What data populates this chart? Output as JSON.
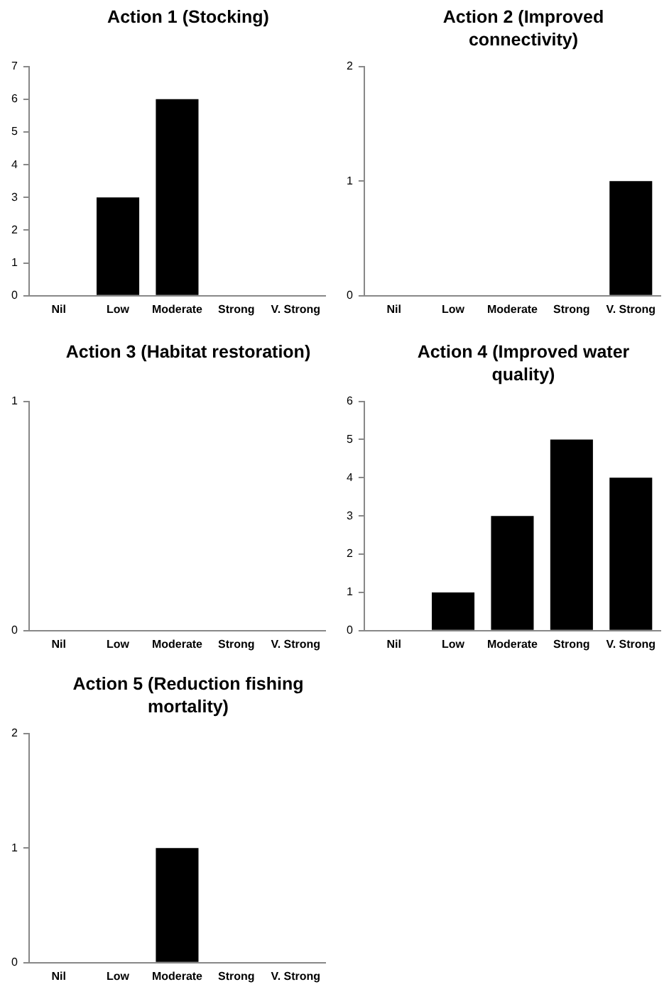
{
  "chart_data": [
    {
      "type": "bar",
      "title": "Action 1 (Stocking)",
      "categories": [
        "Nil",
        "Low",
        "Moderate",
        "Strong",
        "V. Strong"
      ],
      "values": [
        0,
        3,
        6,
        0,
        0
      ],
      "color": "#000000",
      "ylim": [
        0,
        7
      ],
      "yticks": [
        0,
        1,
        2,
        3,
        4,
        5,
        6,
        7
      ]
    },
    {
      "type": "bar",
      "title": "Action 2 (Improved connectivity)",
      "categories": [
        "Nil",
        "Low",
        "Moderate",
        "Strong",
        "V. Strong"
      ],
      "values": [
        0,
        0,
        0,
        0,
        1
      ],
      "color": "#000000",
      "ylim": [
        0,
        2
      ],
      "yticks": [
        0,
        1,
        2
      ]
    },
    {
      "type": "bar",
      "title": "Action 3 (Habitat restoration)",
      "categories": [
        "Nil",
        "Low",
        "Moderate",
        "Strong",
        "V. Strong"
      ],
      "values": [
        0,
        0,
        0,
        0,
        0
      ],
      "color": "#000000",
      "ylim": [
        0,
        1
      ],
      "yticks": [
        0,
        1
      ]
    },
    {
      "type": "bar",
      "title": "Action 4 (Improved water quality)",
      "categories": [
        "Nil",
        "Low",
        "Moderate",
        "Strong",
        "V. Strong"
      ],
      "values": [
        0,
        1,
        3,
        5,
        4
      ],
      "color": "#000000",
      "ylim": [
        0,
        6
      ],
      "yticks": [
        0,
        1,
        2,
        3,
        4,
        5,
        6
      ]
    },
    {
      "type": "bar",
      "title": "Action 5 (Reduction fishing mortality)",
      "categories": [
        "Nil",
        "Low",
        "Moderate",
        "Strong",
        "V. Strong"
      ],
      "values": [
        0,
        0,
        1,
        0,
        0
      ],
      "color": "#000000",
      "ylim": [
        0,
        2
      ],
      "yticks": [
        0,
        1,
        2
      ]
    }
  ]
}
